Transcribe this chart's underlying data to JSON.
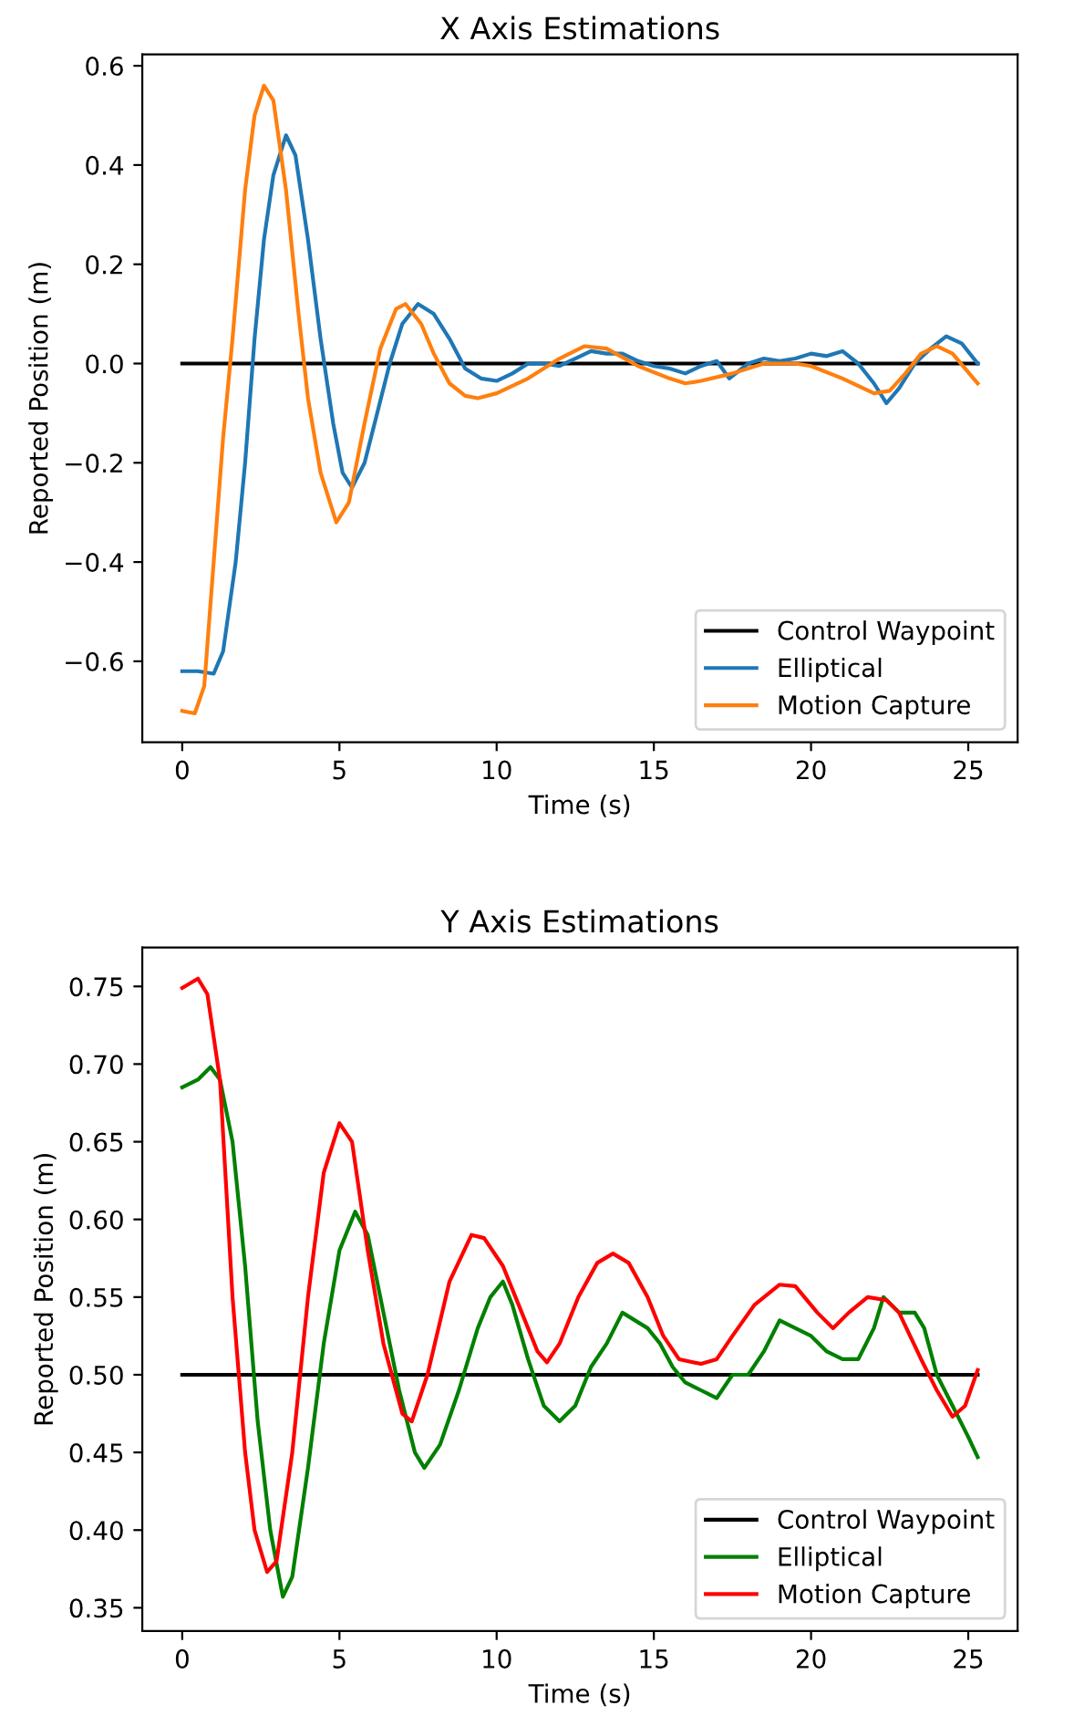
{
  "chart_data": [
    {
      "type": "line",
      "title": "X Axis Estimations",
      "xlabel": "Time (s)",
      "ylabel": "Reported Position (m)",
      "legend": "bottom right",
      "grid": false,
      "xlim": [
        -1.27,
        26.57
      ],
      "ylim": [
        -0.763,
        0.623
      ],
      "xticks": [
        0,
        5,
        10,
        15,
        20,
        25
      ],
      "yticks": [
        {
          "value": -0.6,
          "label": "−0.6"
        },
        {
          "value": -0.4,
          "label": "−0.4"
        },
        {
          "value": -0.2,
          "label": "−0.2"
        },
        {
          "value": 0,
          "label": "0.0"
        },
        {
          "value": 0.2,
          "label": "0.2"
        },
        {
          "value": 0.4,
          "label": "0.4"
        },
        {
          "value": 0.6,
          "label": "0.6"
        }
      ],
      "series": [
        {
          "name": "Control Waypoint",
          "color": "#000000",
          "x": [
            0,
            25.3
          ],
          "values": [
            0,
            0
          ]
        },
        {
          "name": "Elliptical",
          "color": "#1f77b4",
          "x": [
            0,
            0.5,
            1.0,
            1.3,
            1.7,
            2.0,
            2.3,
            2.6,
            2.9,
            3.3,
            3.6,
            4.0,
            4.4,
            4.8,
            5.1,
            5.4,
            5.8,
            6.2,
            6.6,
            7.0,
            7.5,
            8.0,
            8.5,
            9.0,
            9.5,
            10.0,
            10.5,
            11.0,
            11.5,
            12.0,
            12.5,
            13.0,
            13.5,
            14.0,
            14.5,
            15.0,
            15.5,
            16.0,
            16.5,
            17.0,
            17.4,
            18.0,
            18.5,
            19.0,
            19.5,
            20.0,
            20.5,
            21.0,
            21.5,
            22.0,
            22.4,
            22.8,
            23.3,
            23.8,
            24.3,
            24.8,
            25.3
          ],
          "values": [
            -0.62,
            -0.62,
            -0.625,
            -0.58,
            -0.4,
            -0.2,
            0.05,
            0.25,
            0.38,
            0.46,
            0.42,
            0.25,
            0.05,
            -0.12,
            -0.22,
            -0.25,
            -0.2,
            -0.1,
            0.0,
            0.08,
            0.12,
            0.1,
            0.05,
            -0.01,
            -0.03,
            -0.035,
            -0.02,
            0.0,
            0.0,
            -0.005,
            0.01,
            0.025,
            0.02,
            0.02,
            0.005,
            -0.005,
            -0.01,
            -0.02,
            -0.005,
            0.005,
            -0.03,
            0.0,
            0.01,
            0.005,
            0.01,
            0.02,
            0.015,
            0.025,
            0.0,
            -0.04,
            -0.08,
            -0.05,
            0.0,
            0.03,
            0.055,
            0.04,
            0.0
          ]
        },
        {
          "name": "Motion Capture",
          "color": "#ff7f0e",
          "x": [
            0,
            0.4,
            0.7,
            1.0,
            1.3,
            1.6,
            2.0,
            2.3,
            2.6,
            2.9,
            3.3,
            3.7,
            4.0,
            4.4,
            4.9,
            5.3,
            5.8,
            6.3,
            6.8,
            7.1,
            7.6,
            8.0,
            8.5,
            9.0,
            9.4,
            10.0,
            11.0,
            12.0,
            12.8,
            13.5,
            14.5,
            15.5,
            16.0,
            16.5,
            17.5,
            18.5,
            19.5,
            20.0,
            21.0,
            22.0,
            22.5,
            23.0,
            23.5,
            24.0,
            24.5,
            25.3
          ],
          "values": [
            -0.7,
            -0.705,
            -0.65,
            -0.4,
            -0.15,
            0.05,
            0.35,
            0.5,
            0.56,
            0.53,
            0.35,
            0.1,
            -0.07,
            -0.22,
            -0.32,
            -0.28,
            -0.12,
            0.03,
            0.11,
            0.12,
            0.08,
            0.02,
            -0.04,
            -0.065,
            -0.07,
            -0.06,
            -0.03,
            0.01,
            0.035,
            0.03,
            -0.005,
            -0.03,
            -0.04,
            -0.035,
            -0.02,
            0.0,
            0.0,
            -0.005,
            -0.03,
            -0.06,
            -0.055,
            -0.02,
            0.02,
            0.035,
            0.02,
            -0.04
          ]
        }
      ]
    },
    {
      "type": "line",
      "title": "Y Axis Estimations",
      "xlabel": "Time (s)",
      "ylabel": "Reported Position (m)",
      "legend": "bottom right",
      "grid": false,
      "xlim": [
        -1.27,
        26.57
      ],
      "ylim": [
        0.335,
        0.775
      ],
      "xticks": [
        0,
        5,
        10,
        15,
        20,
        25
      ],
      "yticks": [
        {
          "value": 0.35,
          "label": "0.35"
        },
        {
          "value": 0.4,
          "label": "0.40"
        },
        {
          "value": 0.45,
          "label": "0.45"
        },
        {
          "value": 0.5,
          "label": "0.50"
        },
        {
          "value": 0.55,
          "label": "0.55"
        },
        {
          "value": 0.6,
          "label": "0.60"
        },
        {
          "value": 0.65,
          "label": "0.65"
        },
        {
          "value": 0.7,
          "label": "0.70"
        },
        {
          "value": 0.75,
          "label": "0.75"
        }
      ],
      "series": [
        {
          "name": "Control Waypoint",
          "color": "#000000",
          "x": [
            0,
            25.3
          ],
          "values": [
            0.5,
            0.5
          ]
        },
        {
          "name": "Elliptical",
          "color": "#008000",
          "x": [
            0,
            0.5,
            0.9,
            1.2,
            1.6,
            2.0,
            2.4,
            2.8,
            3.2,
            3.5,
            4.0,
            4.5,
            5.0,
            5.5,
            5.9,
            6.4,
            6.9,
            7.4,
            7.7,
            8.2,
            8.8,
            9.4,
            9.8,
            10.2,
            10.5,
            11.0,
            11.5,
            12.0,
            12.5,
            13.0,
            13.5,
            14.0,
            14.4,
            14.8,
            15.2,
            15.6,
            16.0,
            16.5,
            17.0,
            17.5,
            18.0,
            18.5,
            19.0,
            19.5,
            20.0,
            20.5,
            21.0,
            21.5,
            22.0,
            22.3,
            22.8,
            23.3,
            23.6,
            24.0,
            24.5,
            25.0,
            25.3
          ],
          "values": [
            0.685,
            0.69,
            0.698,
            0.69,
            0.65,
            0.57,
            0.47,
            0.4,
            0.357,
            0.37,
            0.44,
            0.52,
            0.58,
            0.605,
            0.59,
            0.54,
            0.49,
            0.45,
            0.44,
            0.455,
            0.49,
            0.53,
            0.55,
            0.56,
            0.545,
            0.51,
            0.48,
            0.47,
            0.48,
            0.505,
            0.52,
            0.54,
            0.535,
            0.53,
            0.52,
            0.505,
            0.495,
            0.49,
            0.485,
            0.5,
            0.5,
            0.515,
            0.535,
            0.53,
            0.525,
            0.515,
            0.51,
            0.51,
            0.53,
            0.55,
            0.54,
            0.54,
            0.53,
            0.5,
            0.48,
            0.46,
            0.447
          ]
        },
        {
          "name": "Motion Capture",
          "color": "#ff0000",
          "x": [
            0,
            0.5,
            0.8,
            1.2,
            1.6,
            2.0,
            2.3,
            2.7,
            3.0,
            3.5,
            4.0,
            4.5,
            5.0,
            5.4,
            5.9,
            6.4,
            7.0,
            7.3,
            7.8,
            8.5,
            9.2,
            9.6,
            10.2,
            10.8,
            11.3,
            11.6,
            12.0,
            12.6,
            13.2,
            13.7,
            14.2,
            14.8,
            15.3,
            15.8,
            16.5,
            17.0,
            17.5,
            18.2,
            19.0,
            19.5,
            20.2,
            20.7,
            21.2,
            21.8,
            22.4,
            22.8,
            23.5,
            24.0,
            24.5,
            24.9,
            25.3
          ],
          "values": [
            0.749,
            0.755,
            0.745,
            0.69,
            0.55,
            0.45,
            0.4,
            0.373,
            0.38,
            0.45,
            0.55,
            0.63,
            0.662,
            0.65,
            0.58,
            0.52,
            0.475,
            0.47,
            0.5,
            0.56,
            0.59,
            0.588,
            0.57,
            0.54,
            0.515,
            0.508,
            0.52,
            0.55,
            0.572,
            0.578,
            0.572,
            0.55,
            0.525,
            0.51,
            0.507,
            0.51,
            0.525,
            0.545,
            0.558,
            0.557,
            0.54,
            0.53,
            0.54,
            0.55,
            0.548,
            0.54,
            0.51,
            0.49,
            0.473,
            0.48,
            0.503
          ]
        }
      ]
    }
  ]
}
